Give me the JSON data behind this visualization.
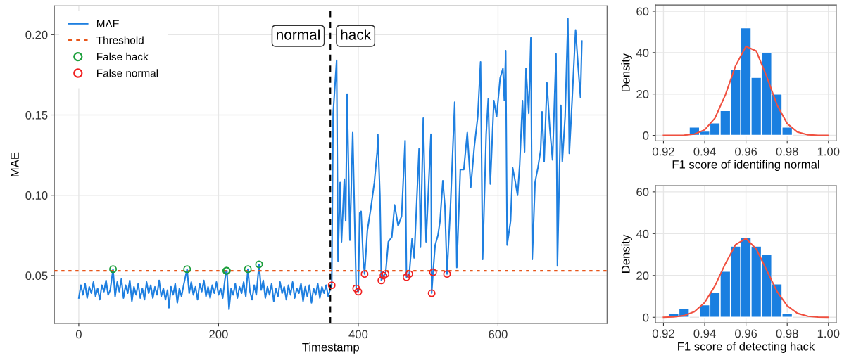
{
  "chart_data": [
    {
      "type": "line",
      "xlabel": "Timestamp",
      "ylabel": "MAE",
      "xlim": [
        -35,
        756
      ],
      "ylim": [
        0.0202,
        0.218
      ],
      "xticks": [
        0,
        200,
        400,
        600
      ],
      "yticks": [
        {
          "value": 0.05,
          "label": "0.05"
        },
        {
          "value": 0.1,
          "label": "0.10"
        },
        {
          "value": 0.15,
          "label": "0.15"
        },
        {
          "value": 0.2,
          "label": "0.20"
        }
      ],
      "grid": true,
      "legend": "top left",
      "series": [
        {
          "name": "MAE",
          "color": "#1e7fe0",
          "x": [
            0,
            3,
            6,
            9,
            12,
            15,
            18,
            21,
            24,
            27,
            30,
            33,
            36,
            39,
            42,
            45,
            49,
            52,
            55,
            58,
            61,
            64,
            67,
            70,
            73,
            76,
            79,
            82,
            85,
            88,
            91,
            94,
            97,
            100,
            103,
            106,
            109,
            112,
            115,
            118,
            121,
            124,
            127,
            129,
            132,
            135,
            138,
            141,
            144,
            147,
            150,
            155,
            158,
            161,
            164,
            167,
            170,
            173,
            176,
            179,
            182,
            185,
            188,
            191,
            194,
            197,
            200,
            203,
            206,
            209,
            211,
            212,
            215,
            218,
            221,
            224,
            227,
            230,
            233,
            236,
            239,
            242,
            245,
            248,
            251,
            254,
            258,
            261,
            264,
            267,
            270,
            273,
            276,
            279,
            282,
            285,
            288,
            291,
            294,
            297,
            300,
            303,
            306,
            309,
            312,
            315,
            318,
            321,
            324,
            327,
            330,
            333,
            336,
            339,
            342,
            345,
            348,
            351,
            354,
            357,
            360,
            362,
            364,
            369,
            371,
            374,
            376,
            380,
            382,
            384,
            388,
            392,
            397,
            400,
            402,
            404,
            407,
            409,
            413,
            418,
            423,
            427,
            428,
            431,
            433,
            436,
            439,
            443,
            448,
            452,
            457,
            462,
            467,
            469,
            473,
            477,
            480,
            487,
            489,
            493,
            497,
            504,
            505,
            507,
            510,
            514,
            517,
            521,
            524,
            527,
            532,
            538,
            541,
            546,
            551,
            556,
            561,
            566,
            571,
            575,
            578,
            583,
            586,
            589,
            594,
            598,
            603,
            607,
            609,
            611,
            613,
            618,
            621,
            624,
            628,
            631,
            635,
            638,
            640,
            644,
            647,
            649,
            653,
            657,
            661,
            663,
            666,
            670,
            674,
            678,
            683,
            685,
            690,
            692,
            696,
            700,
            702,
            706,
            711,
            715,
            718,
            720
          ],
          "values": [
            0.036,
            0.044,
            0.038,
            0.045,
            0.036,
            0.043,
            0.039,
            0.046,
            0.037,
            0.042,
            0.035,
            0.044,
            0.04,
            0.047,
            0.038,
            0.041,
            0.054,
            0.037,
            0.046,
            0.04,
            0.048,
            0.036,
            0.044,
            0.039,
            0.047,
            0.034,
            0.043,
            0.038,
            0.045,
            0.036,
            0.042,
            0.035,
            0.046,
            0.039,
            0.044,
            0.036,
            0.043,
            0.038,
            0.047,
            0.037,
            0.042,
            0.035,
            0.041,
            0.03,
            0.043,
            0.038,
            0.045,
            0.033,
            0.042,
            0.037,
            0.044,
            0.054,
            0.039,
            0.046,
            0.038,
            0.043,
            0.035,
            0.045,
            0.04,
            0.047,
            0.037,
            0.043,
            0.036,
            0.044,
            0.039,
            0.046,
            0.038,
            0.042,
            0.036,
            0.047,
            0.053,
            0.053,
            0.029,
            0.042,
            0.038,
            0.045,
            0.036,
            0.043,
            0.039,
            0.046,
            0.037,
            0.054,
            0.04,
            0.035,
            0.044,
            0.038,
            0.057,
            0.041,
            0.047,
            0.036,
            0.043,
            0.038,
            0.045,
            0.034,
            0.042,
            0.037,
            0.046,
            0.039,
            0.043,
            0.035,
            0.044,
            0.038,
            0.046,
            0.036,
            0.042,
            0.039,
            0.045,
            0.034,
            0.043,
            0.037,
            0.044,
            0.033,
            0.042,
            0.038,
            0.045,
            0.036,
            0.043,
            0.039,
            0.044,
            0.037,
            0.042,
            0.044,
            0.151,
            0.184,
            0.059,
            0.108,
            0.071,
            0.11,
            0.084,
            0.163,
            0.072,
            0.139,
            0.042,
            0.04,
            0.089,
            0.09,
            0.061,
            0.051,
            0.078,
            0.092,
            0.108,
            0.127,
            0.138,
            0.1,
            0.047,
            0.05,
            0.051,
            0.071,
            0.074,
            0.094,
            0.081,
            0.087,
            0.134,
            0.049,
            0.051,
            0.073,
            0.061,
            0.129,
            0.068,
            0.148,
            0.071,
            0.138,
            0.039,
            0.052,
            0.069,
            0.075,
            0.084,
            0.109,
            0.093,
            0.051,
            0.094,
            0.158,
            0.055,
            0.116,
            0.116,
            0.139,
            0.105,
            0.13,
            0.149,
            0.183,
            0.06,
            0.138,
            0.16,
            0.107,
            0.159,
            0.149,
            0.173,
            0.179,
            0.159,
            0.19,
            0.069,
            0.084,
            0.117,
            0.11,
            0.1,
            0.119,
            0.159,
            0.127,
            0.179,
            0.151,
            0.198,
            0.06,
            0.108,
            0.117,
            0.128,
            0.152,
            0.121,
            0.17,
            0.142,
            0.122,
            0.188,
            0.056,
            0.156,
            0.121,
            0.149,
            0.21,
            0.126,
            0.159,
            0.203,
            0.178,
            0.161,
            0.196
          ]
        },
        {
          "name": "False hack",
          "type": "scatter",
          "marker": "circle",
          "color": "#1a9e3a",
          "x": [
            49,
            155,
            211,
            212,
            242,
            258
          ],
          "values": [
            0.054,
            0.054,
            0.053,
            0.053,
            0.054,
            0.057
          ]
        },
        {
          "name": "False normal",
          "type": "scatter",
          "marker": "circle",
          "color": "#f02020",
          "x": [
            362,
            397,
            400,
            409,
            433,
            436,
            439,
            469,
            473,
            505,
            507,
            527
          ],
          "values": [
            0.044,
            0.042,
            0.04,
            0.051,
            0.047,
            0.05,
            0.051,
            0.049,
            0.051,
            0.039,
            0.052,
            0.051
          ]
        }
      ],
      "ref_lines": [
        {
          "axis": "y",
          "value": 0.053,
          "label": "Threshold",
          "color": "#e8561a",
          "line_style": "dotted"
        },
        {
          "axis": "x",
          "value": 360,
          "color": "#000000",
          "line_style": "dashed"
        }
      ],
      "annotations": [
        "normal",
        "hack"
      ]
    },
    {
      "type": "histogram",
      "xlabel": "F1 score of identifing normal",
      "ylabel": "Density",
      "xlim": [
        0.9161,
        1.0038
      ],
      "ylim": [
        -2.6,
        63
      ],
      "xticks": [
        0.92,
        0.94,
        0.96,
        0.98,
        {
          "value": 1,
          "label": "1.00"
        }
      ],
      "yticks": [
        0,
        20,
        40,
        60
      ],
      "grid": true,
      "series": [
        {
          "color": "#1a7fe0",
          "bins": [
            0.9325,
            0.9375,
            0.9425,
            0.9475,
            0.9525,
            0.9575,
            0.9625,
            0.9675,
            0.9725,
            0.9775,
            0.9825
          ],
          "values": [
            4,
            2,
            6,
            12,
            32,
            52,
            28,
            40,
            20,
            4
          ]
        },
        {
          "type": "line",
          "color": "#f05040",
          "x": [
            0.92,
            0.925,
            0.93,
            0.935,
            0.94,
            0.945,
            0.95,
            0.955,
            0.96,
            0.965,
            0.97,
            0.975,
            0.98,
            0.985,
            0.99,
            0.995,
            1.0
          ],
          "values": [
            0,
            0,
            0.1,
            0.6,
            2.7,
            8.4,
            19.5,
            33.7,
            43,
            40.8,
            28.6,
            14.9,
            5.7,
            1.6,
            0.3,
            0,
            0
          ]
        }
      ]
    },
    {
      "type": "histogram",
      "xlabel": "F1 score of detecting hack",
      "ylabel": "Density",
      "xlim": [
        0.9161,
        1.0038
      ],
      "ylim": [
        -2.6,
        63
      ],
      "xticks": [
        0.92,
        0.94,
        0.96,
        0.98,
        {
          "value": 1,
          "label": "1.00"
        }
      ],
      "yticks": [
        0,
        20,
        40,
        60
      ],
      "grid": true,
      "series": [
        {
          "color": "#1a7fe0",
          "bins": [
            0.9225,
            0.9275,
            0.9325,
            0.9375,
            0.9425,
            0.9475,
            0.9525,
            0.9575,
            0.9625,
            0.9675,
            0.9725,
            0.9775,
            0.9825
          ],
          "values": [
            2,
            4,
            0,
            6,
            12,
            22,
            34,
            38,
            34,
            30,
            16,
            2
          ]
        },
        {
          "type": "line",
          "color": "#f05040",
          "x": [
            0.92,
            0.925,
            0.93,
            0.935,
            0.94,
            0.945,
            0.95,
            0.955,
            0.96,
            0.965,
            0.97,
            0.975,
            0.98,
            0.985,
            0.99,
            0.995,
            1.0
          ],
          "values": [
            0,
            0.2,
            0.8,
            2.7,
            7.1,
            15.1,
            25.6,
            34.8,
            37.7,
            32.7,
            22.6,
            12.5,
            5.5,
            1.9,
            0.5,
            0.1,
            0
          ]
        }
      ]
    }
  ]
}
